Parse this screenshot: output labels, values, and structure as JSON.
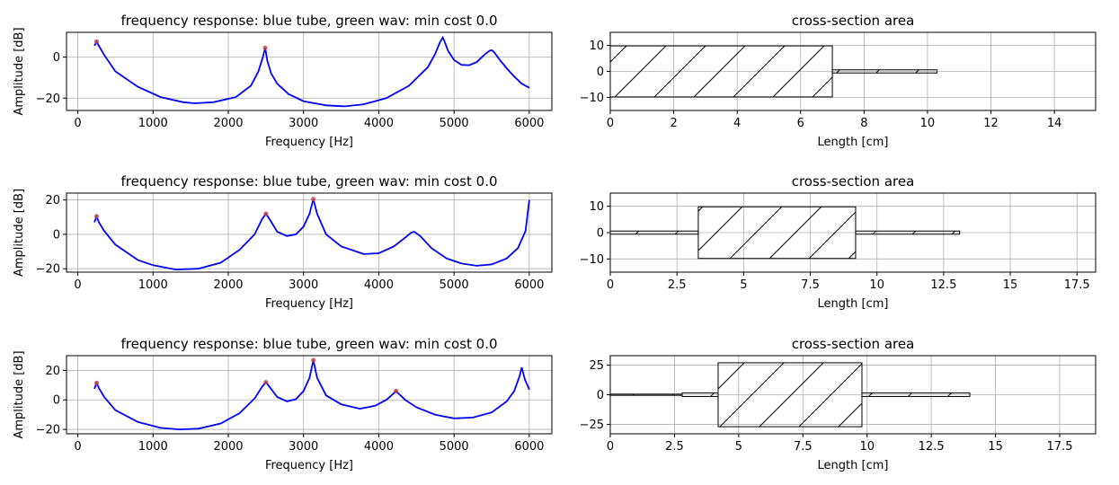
{
  "colors": {
    "tube_curve": "#0000ff",
    "peak_marker": "#cc4444",
    "grid": "#b0b0b0",
    "axes": "#000000"
  },
  "chart_data": [
    {
      "id": "fr1",
      "type": "line",
      "title": "frequency response: blue tube, green wav: min cost 0.0",
      "xlabel": "Frequency [Hz]",
      "ylabel": "Amplitude [dB]",
      "xlim": [
        -150,
        6300
      ],
      "ylim": [
        -26,
        12
      ],
      "xticks": [
        0,
        1000,
        2000,
        3000,
        4000,
        5000,
        6000
      ],
      "yticks": [
        -20,
        0
      ],
      "grid": true,
      "series": [
        {
          "x": [
            220,
            250,
            280,
            350,
            500,
            800,
            1100,
            1400,
            1550,
            1800,
            2100,
            2300,
            2400,
            2460,
            2490,
            2520,
            2570,
            2650,
            2800,
            3000,
            3300,
            3550,
            3800,
            4100,
            4400,
            4650,
            4750,
            4810,
            4850,
            4880,
            4920,
            5000,
            5100,
            5200,
            5300,
            5400,
            5470,
            5500,
            5530,
            5600,
            5700,
            5800,
            5900,
            6000
          ],
          "y": [
            5.5,
            7.5,
            5.5,
            1,
            -7,
            -14.5,
            -19.5,
            -22,
            -22.5,
            -22,
            -19.5,
            -14,
            -7,
            0,
            4.5,
            -2,
            -8,
            -13,
            -18,
            -21.5,
            -23.5,
            -24,
            -23,
            -20,
            -14,
            -5,
            1.5,
            7,
            9.5,
            7,
            3,
            -1.5,
            -3.8,
            -4,
            -2.5,
            1,
            3,
            3.3,
            2.5,
            -1,
            -5.5,
            -9.5,
            -13,
            -15
          ]
        }
      ],
      "markers": {
        "x": [
          250,
          2490
        ],
        "y": [
          7.5,
          4.5
        ]
      }
    },
    {
      "id": "cs1",
      "type": "area",
      "title": "cross-section area",
      "xlabel": "Length [cm]",
      "ylabel": "",
      "xlim": [
        0,
        15.3
      ],
      "ylim": [
        -15,
        15
      ],
      "xticks": [
        0,
        2,
        4,
        6,
        8,
        10,
        12,
        14
      ],
      "yticks": [
        -10,
        0,
        10
      ],
      "grid": true,
      "segments": [
        {
          "x0": 0,
          "x1": 7.0,
          "half_width": 9.8
        },
        {
          "x0": 7.0,
          "x1": 10.3,
          "half_width": 0.6
        }
      ]
    },
    {
      "id": "fr2",
      "type": "line",
      "title": "frequency response: blue tube, green wav: min cost 0.0",
      "xlabel": "Frequency [Hz]",
      "ylabel": "Amplitude [dB]",
      "xlim": [
        -150,
        6300
      ],
      "ylim": [
        -22,
        24
      ],
      "xticks": [
        0,
        1000,
        2000,
        3000,
        4000,
        5000,
        6000
      ],
      "yticks": [
        -20,
        0,
        20
      ],
      "grid": true,
      "series": [
        {
          "x": [
            220,
            250,
            280,
            350,
            500,
            800,
            1000,
            1300,
            1600,
            1900,
            2150,
            2350,
            2450,
            2500,
            2560,
            2650,
            2780,
            2900,
            3000,
            3080,
            3130,
            3180,
            3300,
            3500,
            3800,
            4000,
            4200,
            4350,
            4430,
            4470,
            4550,
            4700,
            4900,
            5100,
            5300,
            5500,
            5700,
            5850,
            5950,
            6000
          ],
          "y": [
            7,
            10.5,
            7,
            2,
            -6,
            -15,
            -18,
            -20.5,
            -20,
            -16.5,
            -9,
            0,
            9,
            12,
            8,
            1.5,
            -1,
            0,
            4.5,
            12,
            20.5,
            12,
            0,
            -7,
            -11.5,
            -11,
            -7,
            -2,
            1,
            1.5,
            -1,
            -8,
            -14,
            -17,
            -18.3,
            -17.5,
            -14,
            -8,
            2,
            20
          ]
        }
      ],
      "markers": {
        "x": [
          250,
          2500,
          3130
        ],
        "y": [
          10.5,
          12,
          20.5
        ]
      }
    },
    {
      "id": "cs2",
      "type": "area",
      "title": "cross-section area",
      "xlabel": "Length [cm]",
      "ylabel": "",
      "xlim": [
        0,
        18.2
      ],
      "ylim": [
        -15,
        15
      ],
      "xticks": [
        0.0,
        2.5,
        5.0,
        7.5,
        10.0,
        12.5,
        15.0,
        17.5
      ],
      "yticks": [
        -10,
        0,
        10
      ],
      "grid": true,
      "segments": [
        {
          "x0": 0,
          "x1": 3.3,
          "half_width": 0.6
        },
        {
          "x0": 3.3,
          "x1": 9.2,
          "half_width": 9.8
        },
        {
          "x0": 9.2,
          "x1": 13.1,
          "half_width": 0.6
        }
      ]
    },
    {
      "id": "fr3",
      "type": "line",
      "title": "frequency response: blue tube, green wav: min cost 0.0",
      "xlabel": "Frequency [Hz]",
      "ylabel": "Amplitude [dB]",
      "xlim": [
        -150,
        6300
      ],
      "ylim": [
        -23,
        30
      ],
      "xticks": [
        0,
        1000,
        2000,
        3000,
        4000,
        5000,
        6000
      ],
      "yticks": [
        -20,
        0,
        20
      ],
      "grid": true,
      "series": [
        {
          "x": [
            220,
            250,
            280,
            350,
            500,
            800,
            1100,
            1350,
            1600,
            1900,
            2150,
            2350,
            2450,
            2500,
            2560,
            2650,
            2780,
            2900,
            3000,
            3080,
            3130,
            3180,
            3300,
            3500,
            3750,
            3950,
            4100,
            4200,
            4230,
            4270,
            4350,
            4500,
            4750,
            5000,
            5250,
            5500,
            5700,
            5800,
            5870,
            5900,
            5940,
            6000
          ],
          "y": [
            7.5,
            11.5,
            8,
            2,
            -7,
            -15,
            -19,
            -20,
            -19.5,
            -16,
            -9,
            1,
            9,
            12,
            8,
            2,
            -1,
            0.5,
            6,
            15,
            27,
            15,
            3,
            -3,
            -6,
            -4,
            0,
            4.5,
            6,
            4,
            0,
            -5,
            -10,
            -12.5,
            -12,
            -8.5,
            -1,
            6,
            16,
            22,
            14,
            7
          ]
        }
      ],
      "markers": {
        "x": [
          250,
          2500,
          3130,
          4230
        ],
        "y": [
          11.5,
          12,
          27,
          6
        ]
      }
    },
    {
      "id": "cs3",
      "type": "area",
      "title": "cross-section area",
      "xlabel": "Length [cm]",
      "ylabel": "",
      "xlim": [
        0,
        18.9
      ],
      "ylim": [
        -33,
        33
      ],
      "xticks": [
        0.0,
        2.5,
        5.0,
        7.5,
        10.0,
        12.5,
        15.0,
        17.5
      ],
      "yticks": [
        -25,
        0,
        25
      ],
      "grid": true,
      "segments": [
        {
          "x0": 0,
          "x1": 2.8,
          "half_width": 0.5
        },
        {
          "x0": 2.8,
          "x1": 4.2,
          "half_width": 1.5
        },
        {
          "x0": 4.2,
          "x1": 9.8,
          "half_width": 27
        },
        {
          "x0": 9.8,
          "x1": 14.0,
          "half_width": 1.5
        }
      ]
    }
  ]
}
